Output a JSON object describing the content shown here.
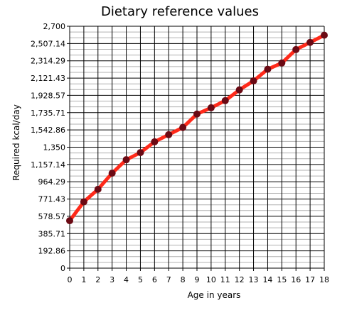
{
  "chart_data": {
    "type": "line",
    "title": "Dietary reference values",
    "xlabel": "Age in years",
    "ylabel": "Required kcal/day",
    "x": [
      0,
      1,
      2,
      3,
      4,
      5,
      6,
      7,
      8,
      9,
      10,
      11,
      12,
      13,
      14,
      15,
      16,
      17,
      18
    ],
    "xlim": [
      0,
      18
    ],
    "ylim": [
      0,
      2700
    ],
    "x_ticks": [
      "0",
      "1",
      "2",
      "3",
      "4",
      "5",
      "6",
      "7",
      "8",
      "9",
      "10",
      "11",
      "12",
      "13",
      "14",
      "15",
      "16",
      "17",
      "18"
    ],
    "y_ticks": [
      {
        "value": 0,
        "label": "0"
      },
      {
        "value": 192.86,
        "label": "192.86"
      },
      {
        "value": 385.71,
        "label": "385.71"
      },
      {
        "value": 578.57,
        "label": "578.57"
      },
      {
        "value": 771.43,
        "label": "771.43"
      },
      {
        "value": 964.29,
        "label": "964.29"
      },
      {
        "value": 1157.14,
        "label": "1,157.14"
      },
      {
        "value": 1350,
        "label": "1,350"
      },
      {
        "value": 1542.86,
        "label": "1,542.86"
      },
      {
        "value": 1735.71,
        "label": "1,735.71"
      },
      {
        "value": 1928.57,
        "label": "1,928.57"
      },
      {
        "value": 2121.43,
        "label": "2,121.43"
      },
      {
        "value": 2314.29,
        "label": "2,314.29"
      },
      {
        "value": 2507.14,
        "label": "2,507.14"
      },
      {
        "value": 2700,
        "label": "2,700"
      }
    ],
    "grid": true,
    "minor_gridlines_per_major": 2,
    "series": [
      {
        "values": [
          530,
          740,
          880,
          1060,
          1210,
          1290,
          1410,
          1490,
          1570,
          1720,
          1790,
          1870,
          1990,
          2090,
          2220,
          2290,
          2440,
          2520,
          2600
        ],
        "line_color": "#ff2a1a",
        "marker_color": "#6b0a14"
      }
    ]
  }
}
